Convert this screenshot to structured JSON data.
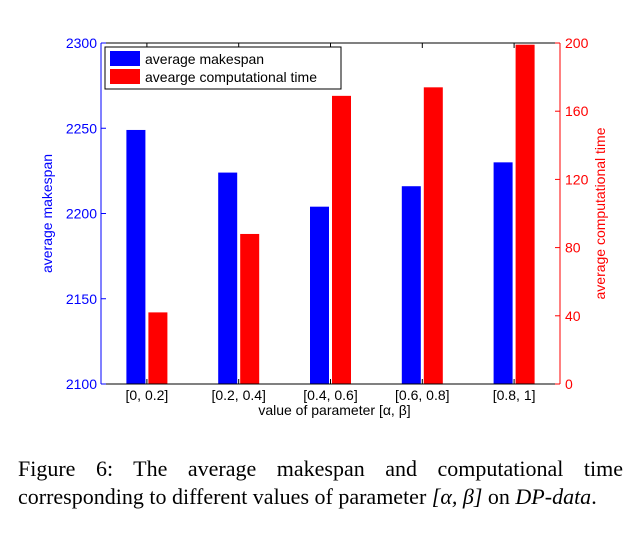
{
  "chart_data": {
    "type": "bar",
    "categories": [
      "[0, 0.2]",
      "[0.2, 0.4]",
      "[0.4, 0.6]",
      "[0.6, 0.8]",
      "[0.8, 1]"
    ],
    "xlabel": "value of parameter [α, β]",
    "series": [
      {
        "name": "average makespan",
        "axis": "left",
        "color": "#0000ff",
        "values": [
          2249,
          2224,
          2204,
          2216,
          2230
        ]
      },
      {
        "name": "avearge computational time",
        "axis": "right",
        "color": "#ff0000",
        "values": [
          42,
          88,
          169,
          174,
          199
        ]
      }
    ],
    "y_left": {
      "label": "average makespan",
      "lim": [
        2100,
        2300
      ],
      "ticks": [
        2100,
        2150,
        2200,
        2250,
        2300
      ],
      "color": "#0000ff"
    },
    "y_right": {
      "label": "average computational time",
      "lim": [
        0,
        200
      ],
      "ticks": [
        0,
        40,
        80,
        120,
        160,
        200
      ],
      "color": "#ff0000"
    },
    "legend_position": "top-left",
    "grid": false
  },
  "caption": {
    "prefix": "Figure 6: The average makespan and computational time corresponding to different values of parameter ",
    "math": "[α, β]",
    "mid": " on ",
    "dataset": "DP-data",
    "suffix": "."
  }
}
